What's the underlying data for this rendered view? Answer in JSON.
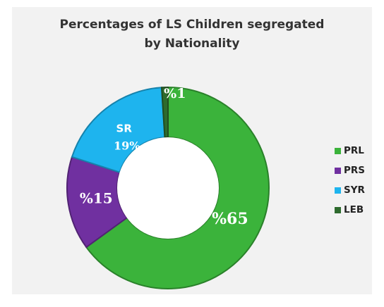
{
  "chart_data": {
    "type": "pie",
    "title_lines": [
      "Percentages of LS Children segregated",
      "by Nationality"
    ],
    "categories": [
      "PRL",
      "PRS",
      "SYR",
      "LEB"
    ],
    "values": [
      65,
      15,
      19,
      1
    ],
    "colors": [
      "#3bb33b",
      "#7030a0",
      "#1eb4ee",
      "#2e6b2e"
    ],
    "slice_labels": [
      "%65",
      "%15",
      "19%",
      "%1"
    ],
    "extra_labels": {
      "SYR": "SR"
    },
    "donut": true,
    "legend_position": "right"
  }
}
